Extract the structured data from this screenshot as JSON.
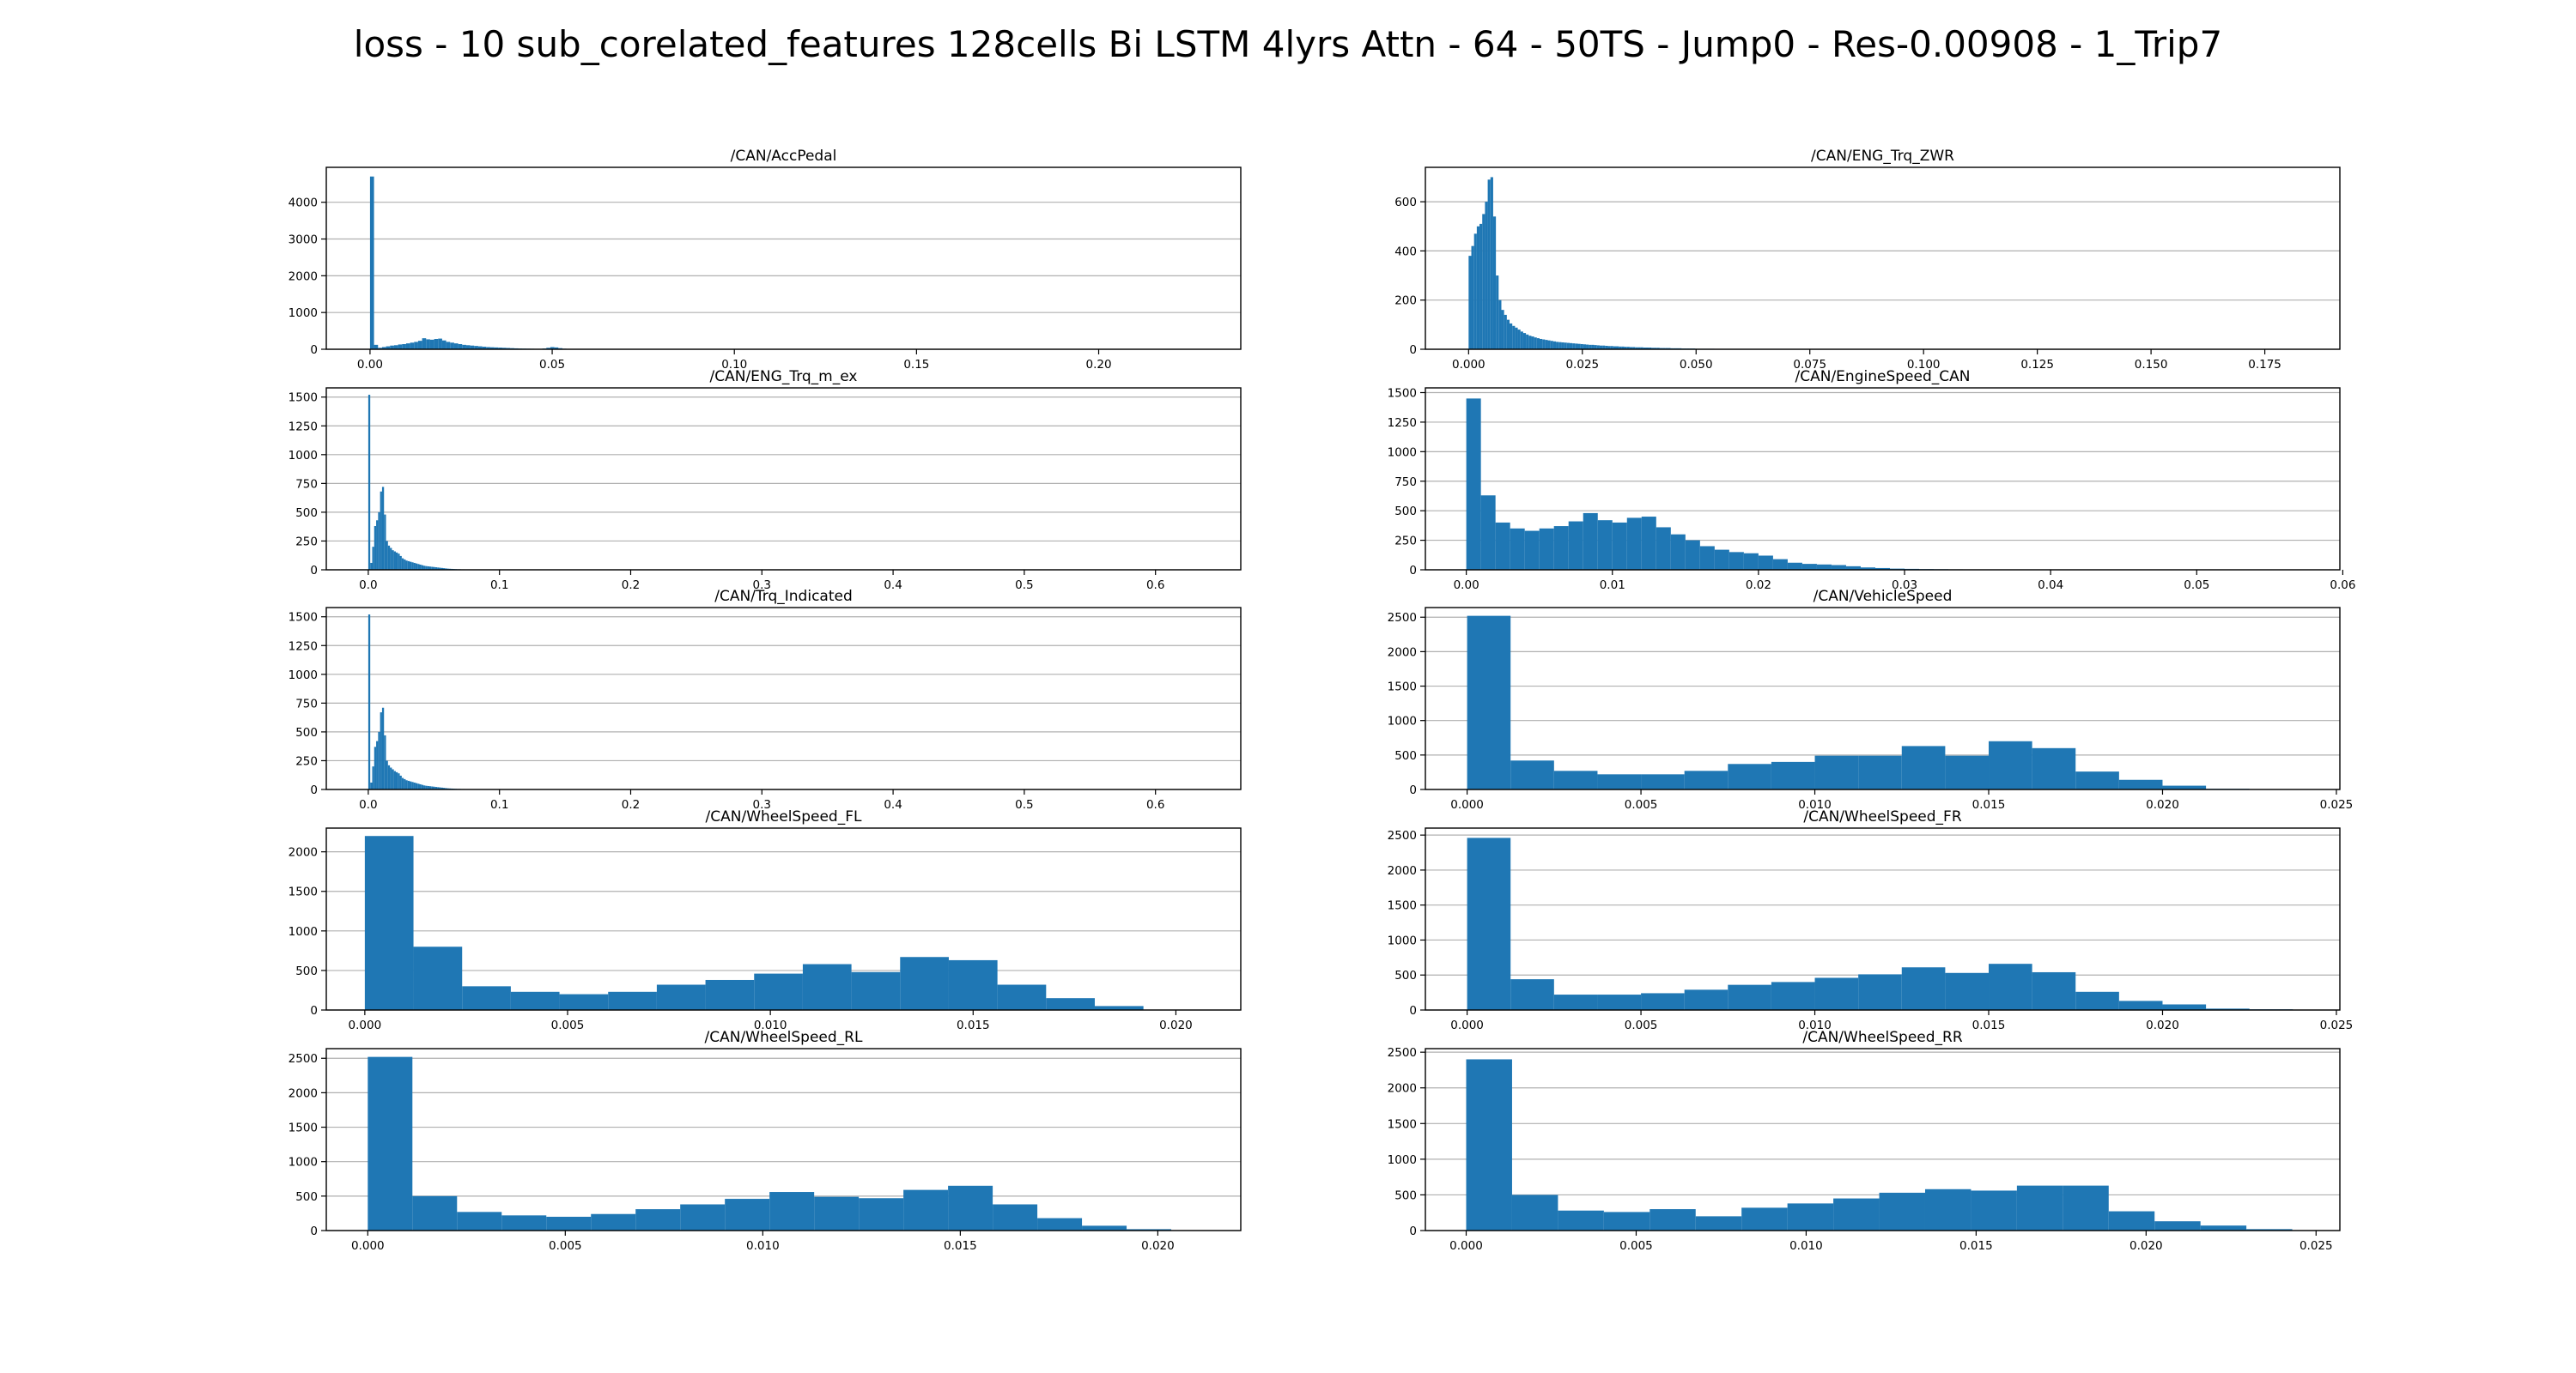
{
  "suptitle": "loss - 10 sub_corelated_features 128cells Bi LSTM 4lyrs Attn - 64 - 50TS - Jump0 - Res-0.00908 - 1_Trip7",
  "bar_color": "#1f77b4",
  "chart_data": [
    {
      "type": "bar",
      "title": "/CAN/AccPedal",
      "grid": true,
      "xlim": [
        -0.012,
        0.239
      ],
      "ylim": [
        0,
        4950
      ],
      "xticks": [
        0.0,
        0.05,
        0.1,
        0.15,
        0.2
      ],
      "xticklabels": [
        "0.00",
        "0.05",
        "0.10",
        "0.15",
        "0.20"
      ],
      "yticks": [
        0,
        1000,
        2000,
        3000,
        4000
      ],
      "yticklabels": [
        "0",
        "1000",
        "2000",
        "3000",
        "4000"
      ],
      "bin_start": 0.0,
      "bin_width": 0.0011,
      "values": [
        4700,
        120,
        40,
        60,
        80,
        100,
        110,
        130,
        140,
        160,
        180,
        200,
        230,
        300,
        270,
        260,
        280,
        290,
        240,
        200,
        180,
        160,
        140,
        120,
        110,
        100,
        90,
        80,
        70,
        60,
        55,
        50,
        45,
        40,
        35,
        30,
        25,
        20,
        18,
        16,
        14,
        12,
        12,
        20,
        40,
        60,
        50,
        30,
        15,
        10,
        8,
        6,
        5,
        4,
        3,
        3,
        2,
        2,
        2,
        1,
        1,
        1,
        1,
        1,
        1,
        1,
        0,
        0,
        1,
        0,
        0,
        0,
        1,
        0,
        0,
        0,
        0,
        0,
        0,
        0,
        1
      ]
    },
    {
      "type": "bar",
      "title": "/CAN/ENG_Trq_ZWR",
      "grid": true,
      "xlim": [
        -0.0095,
        0.1915
      ],
      "ylim": [
        0,
        740
      ],
      "xticks": [
        0.0,
        0.025,
        0.05,
        0.075,
        0.1,
        0.125,
        0.15,
        0.175
      ],
      "xticklabels": [
        "0.000",
        "0.025",
        "0.050",
        "0.075",
        "0.100",
        "0.125",
        "0.150",
        "0.175"
      ],
      "yticks": [
        0,
        200,
        400,
        600
      ],
      "yticklabels": [
        "0",
        "200",
        "400",
        "600"
      ],
      "bin_start": 0.0,
      "bin_width": 0.0006,
      "values": [
        380,
        420,
        470,
        500,
        510,
        550,
        600,
        690,
        700,
        540,
        300,
        200,
        160,
        140,
        120,
        105,
        95,
        88,
        80,
        72,
        66,
        60,
        55,
        52,
        48,
        45,
        42,
        40,
        38,
        36,
        34,
        32,
        30,
        29,
        28,
        27,
        26,
        25,
        24,
        23,
        22,
        21,
        20,
        19,
        18,
        18,
        17,
        16,
        15,
        15,
        14,
        13,
        13,
        12,
        12,
        11,
        11,
        10,
        10,
        9,
        9,
        8,
        8,
        8,
        7,
        7,
        7,
        6,
        6,
        6,
        5,
        5,
        5,
        5,
        4,
        4,
        4,
        4,
        3,
        3,
        3,
        3,
        3,
        2,
        2,
        2,
        2,
        2,
        2,
        2,
        1,
        1,
        1,
        1,
        1,
        1,
        1,
        1,
        1,
        1
      ]
    },
    {
      "type": "bar",
      "title": "/CAN/ENG_Trq_m_ex",
      "grid": true,
      "xlim": [
        -0.032,
        0.665
      ],
      "ylim": [
        0,
        1580
      ],
      "xticks": [
        0.0,
        0.1,
        0.2,
        0.3,
        0.4,
        0.5,
        0.6
      ],
      "xticklabels": [
        "0.0",
        "0.1",
        "0.2",
        "0.3",
        "0.4",
        "0.5",
        "0.6"
      ],
      "yticks": [
        0,
        250,
        500,
        750,
        1000,
        1250,
        1500
      ],
      "yticklabels": [
        "0",
        "250",
        "500",
        "750",
        "1000",
        "1250",
        "1500"
      ],
      "bin_start": 0.0,
      "bin_width": 0.0015,
      "values": [
        1520,
        60,
        200,
        380,
        430,
        500,
        680,
        720,
        480,
        250,
        210,
        190,
        170,
        160,
        150,
        140,
        120,
        100,
        90,
        80,
        75,
        70,
        65,
        60,
        55,
        50,
        45,
        40,
        35,
        32,
        30,
        28,
        26,
        24,
        22,
        20,
        18,
        16,
        14,
        12,
        10,
        9,
        8,
        7,
        6,
        5,
        5,
        4,
        4,
        3,
        3,
        2,
        2,
        2,
        1,
        1,
        1,
        1,
        1,
        1
      ]
    },
    {
      "type": "bar",
      "title": "/CAN/EngineSpeed_CAN",
      "grid": true,
      "xlim": [
        -0.0028,
        0.0598
      ],
      "ylim": [
        0,
        1540
      ],
      "xticks": [
        0.0,
        0.01,
        0.02,
        0.03,
        0.04,
        0.05,
        0.06
      ],
      "xticklabels": [
        "0.00",
        "0.01",
        "0.02",
        "0.03",
        "0.04",
        "0.05",
        "0.06"
      ],
      "yticks": [
        0,
        250,
        500,
        750,
        1000,
        1250,
        1500
      ],
      "yticklabels": [
        "0",
        "250",
        "500",
        "750",
        "1000",
        "1250",
        "1500"
      ],
      "bin_start": 0.0,
      "bin_width": 0.001,
      "values": [
        1450,
        630,
        400,
        350,
        330,
        350,
        370,
        410,
        480,
        420,
        400,
        440,
        450,
        360,
        300,
        250,
        200,
        170,
        150,
        140,
        120,
        90,
        60,
        50,
        45,
        40,
        30,
        20,
        15,
        10,
        8,
        6,
        5,
        4,
        3,
        2,
        2,
        1,
        1,
        1
      ]
    },
    {
      "type": "bar",
      "title": "/CAN/Trq_Indicated",
      "grid": true,
      "xlim": [
        -0.032,
        0.665
      ],
      "ylim": [
        0,
        1580
      ],
      "xticks": [
        0.0,
        0.1,
        0.2,
        0.3,
        0.4,
        0.5,
        0.6
      ],
      "xticklabels": [
        "0.0",
        "0.1",
        "0.2",
        "0.3",
        "0.4",
        "0.5",
        "0.6"
      ],
      "yticks": [
        0,
        250,
        500,
        750,
        1000,
        1250,
        1500
      ],
      "yticklabels": [
        "0",
        "250",
        "500",
        "750",
        "1000",
        "1250",
        "1500"
      ],
      "bin_start": 0.0,
      "bin_width": 0.0015,
      "values": [
        1520,
        60,
        200,
        370,
        420,
        500,
        670,
        710,
        470,
        250,
        210,
        190,
        175,
        160,
        150,
        140,
        120,
        100,
        90,
        80,
        75,
        70,
        65,
        60,
        55,
        50,
        45,
        40,
        35,
        32,
        30,
        28,
        26,
        24,
        22,
        20,
        18,
        16,
        14,
        12,
        10,
        9,
        8,
        7,
        6,
        5,
        5,
        4,
        4,
        3,
        3,
        2,
        2,
        2,
        1,
        1,
        1,
        1,
        1,
        1
      ]
    },
    {
      "type": "bar",
      "title": "/CAN/VehicleSpeed",
      "grid": true,
      "xlim": [
        -0.0012,
        0.0251
      ],
      "ylim": [
        0,
        2640
      ],
      "xticks": [
        0.0,
        0.005,
        0.01,
        0.015,
        0.02,
        0.025
      ],
      "xticklabels": [
        "0.000",
        "0.005",
        "0.010",
        "0.015",
        "0.020",
        "0.025"
      ],
      "yticks": [
        0,
        500,
        1000,
        1500,
        2000,
        2500
      ],
      "yticklabels": [
        "0",
        "500",
        "1000",
        "1500",
        "2000",
        "2500"
      ],
      "bin_start": 0.0,
      "bin_width": 0.00125,
      "values": [
        2520,
        420,
        270,
        220,
        220,
        270,
        370,
        400,
        490,
        490,
        630,
        490,
        700,
        600,
        260,
        140,
        55,
        10
      ]
    },
    {
      "type": "bar",
      "title": "/CAN/WheelSpeed_FL",
      "grid": true,
      "xlim": [
        -0.00095,
        0.0216
      ],
      "ylim": [
        0,
        2300
      ],
      "xticks": [
        0.0,
        0.005,
        0.01,
        0.015,
        0.02
      ],
      "xticklabels": [
        "0.000",
        "0.005",
        "0.010",
        "0.015",
        "0.020"
      ],
      "yticks": [
        0,
        500,
        1000,
        1500,
        2000
      ],
      "yticklabels": [
        "0",
        "500",
        "1000",
        "1500",
        "2000"
      ],
      "bin_start": 0.0,
      "bin_width": 0.0012,
      "values": [
        2200,
        800,
        300,
        230,
        200,
        230,
        320,
        380,
        460,
        580,
        480,
        670,
        630,
        320,
        150,
        50
      ]
    },
    {
      "type": "bar",
      "title": "/CAN/WheelSpeed_FR",
      "grid": true,
      "xlim": [
        -0.0012,
        0.0251
      ],
      "ylim": [
        0,
        2600
      ],
      "xticks": [
        0.0,
        0.005,
        0.01,
        0.015,
        0.02,
        0.025
      ],
      "xticklabels": [
        "0.000",
        "0.005",
        "0.010",
        "0.015",
        "0.020",
        "0.025"
      ],
      "yticks": [
        0,
        500,
        1000,
        1500,
        2000,
        2500
      ],
      "yticklabels": [
        "0",
        "500",
        "1000",
        "1500",
        "2000",
        "2500"
      ],
      "bin_start": 0.0,
      "bin_width": 0.00125,
      "values": [
        2460,
        440,
        220,
        220,
        240,
        290,
        360,
        400,
        460,
        510,
        610,
        530,
        660,
        540,
        260,
        130,
        80,
        20,
        10
      ]
    },
    {
      "type": "bar",
      "title": "/CAN/WheelSpeed_RL",
      "grid": true,
      "xlim": [
        -0.00105,
        0.0221
      ],
      "ylim": [
        0,
        2640
      ],
      "xticks": [
        0.0,
        0.005,
        0.01,
        0.015,
        0.02
      ],
      "xticklabels": [
        "0.000",
        "0.005",
        "0.010",
        "0.015",
        "0.020"
      ],
      "yticks": [
        0,
        500,
        1000,
        1500,
        2000,
        2500
      ],
      "yticklabels": [
        "0",
        "500",
        "1000",
        "1500",
        "2000",
        "2500"
      ],
      "bin_start": 0.0,
      "bin_width": 0.00113,
      "values": [
        2520,
        500,
        270,
        220,
        200,
        240,
        310,
        380,
        460,
        560,
        490,
        470,
        590,
        650,
        380,
        180,
        70,
        20
      ]
    },
    {
      "type": "bar",
      "title": "/CAN/WheelSpeed_RR",
      "grid": true,
      "xlim": [
        -0.0012,
        0.0257
      ],
      "ylim": [
        0,
        2550
      ],
      "xticks": [
        0.0,
        0.005,
        0.01,
        0.015,
        0.02,
        0.025
      ],
      "xticklabels": [
        "0.000",
        "0.005",
        "0.010",
        "0.015",
        "0.020",
        "0.025"
      ],
      "yticks": [
        0,
        500,
        1000,
        1500,
        2000,
        2500
      ],
      "yticklabels": [
        "0",
        "500",
        "1000",
        "1500",
        "2000",
        "2500"
      ],
      "bin_start": 0.0,
      "bin_width": 0.00135,
      "values": [
        2400,
        500,
        280,
        260,
        300,
        200,
        320,
        380,
        450,
        530,
        580,
        560,
        630,
        630,
        270,
        130,
        70,
        20
      ]
    }
  ]
}
